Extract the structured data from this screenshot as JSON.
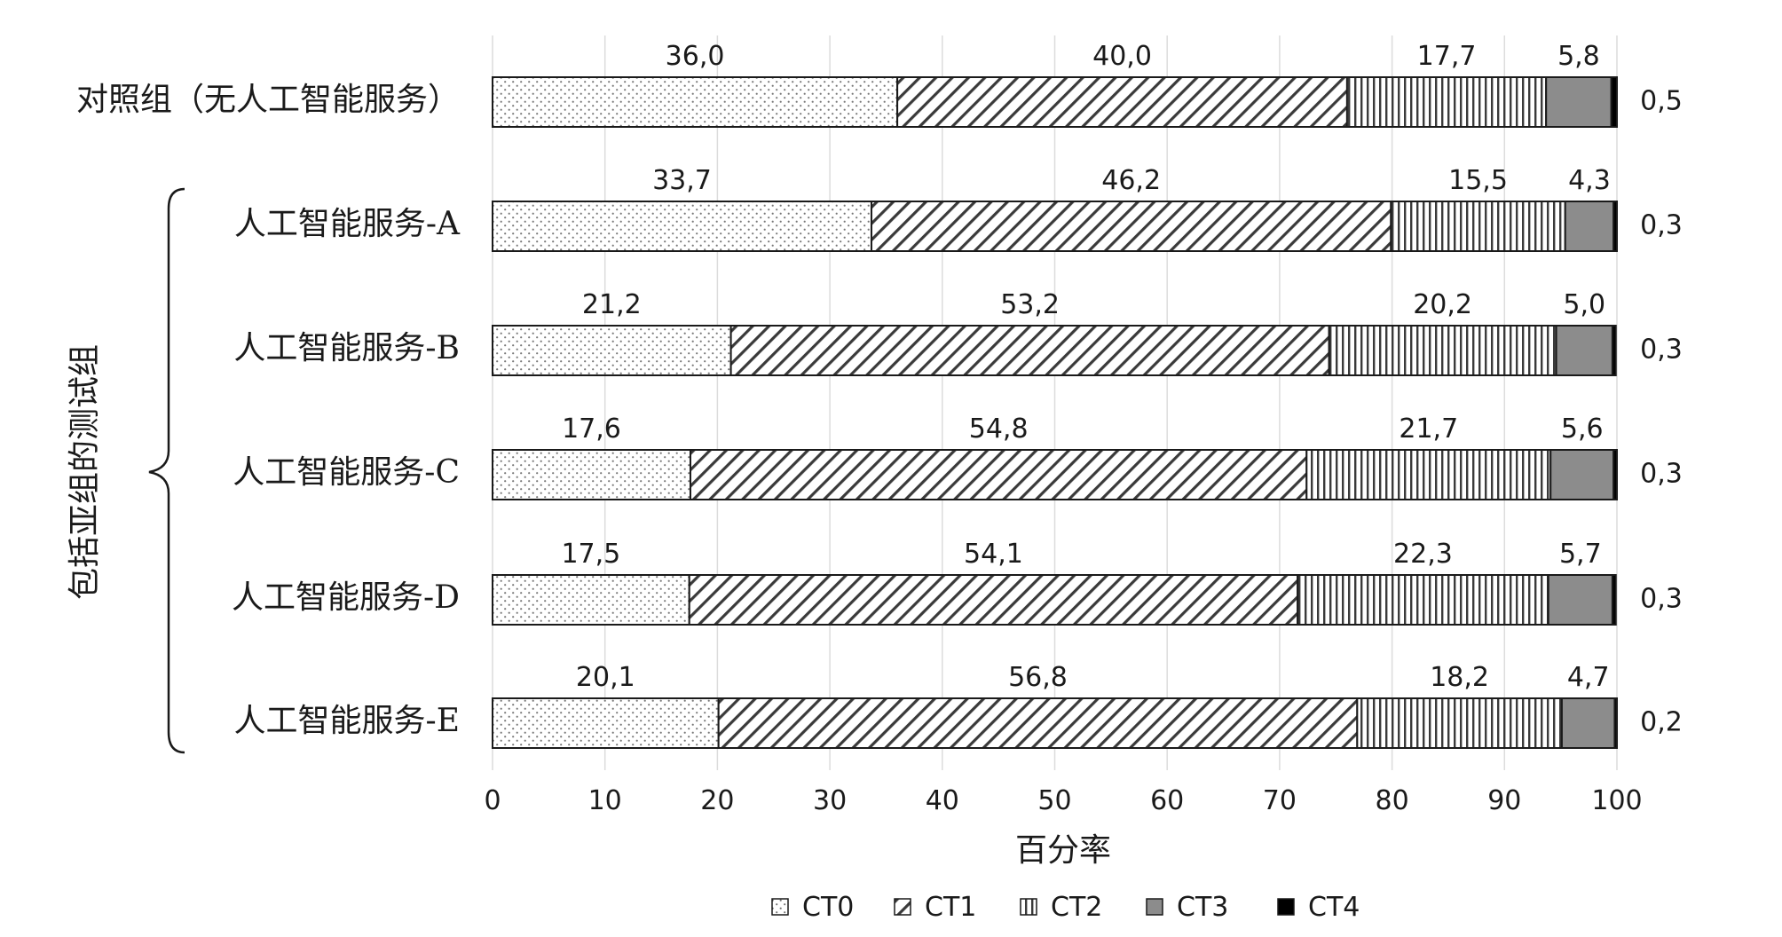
{
  "chart_data": {
    "type": "bar",
    "orientation": "horizontal",
    "stacked": true,
    "categories": [
      "对照组（无人工智能服务）",
      "人工智能服务-A",
      "人工智能服务-B",
      "人工智能服务-C",
      "人工智能服务-D",
      "人工智能服务-E"
    ],
    "series": [
      {
        "name": "CT0",
        "values": [
          36.0,
          33.7,
          21.2,
          17.6,
          17.5,
          20.1
        ],
        "labels": [
          "36,0",
          "33,7",
          "21,2",
          "17,6",
          "17,5",
          "20,1"
        ]
      },
      {
        "name": "CT1",
        "values": [
          40.0,
          46.2,
          53.2,
          54.8,
          54.1,
          56.8
        ],
        "labels": [
          "40,0",
          "46,2",
          "53,2",
          "54,8",
          "54,1",
          "56,8"
        ]
      },
      {
        "name": "CT2",
        "values": [
          17.7,
          15.5,
          20.2,
          21.7,
          22.3,
          18.2
        ],
        "labels": [
          "17,7",
          "15,5",
          "20,2",
          "21,7",
          "22,3",
          "18,2"
        ]
      },
      {
        "name": "CT3",
        "values": [
          5.8,
          4.3,
          5.0,
          5.6,
          5.7,
          4.7
        ],
        "labels": [
          "5,8",
          "4,3",
          "5,0",
          "5,6",
          "5,7",
          "4,7"
        ]
      },
      {
        "name": "CT4",
        "values": [
          0.5,
          0.3,
          0.3,
          0.3,
          0.3,
          0.2
        ],
        "labels": [
          "0,5",
          "0,3",
          "0,3",
          "0,3",
          "0,3",
          "0,2"
        ]
      }
    ],
    "xlabel": "百分率",
    "group_label": "包括亚组的测试组",
    "xlim": [
      0,
      100
    ],
    "xticks": [
      0,
      10,
      20,
      30,
      40,
      50,
      60,
      70,
      80,
      90,
      100
    ],
    "grid": true,
    "legend_position": "bottom",
    "patterns": {
      "CT0": "dots",
      "CT1": "diagonal-hatch",
      "CT2": "vertical-lines",
      "CT3": "gray-fill",
      "CT4": "black-fill"
    },
    "colors": {
      "CT3": "#8c8c8c",
      "CT4": "#000000",
      "grid": "#dcdcdc",
      "text": "#1a1a1a"
    }
  }
}
